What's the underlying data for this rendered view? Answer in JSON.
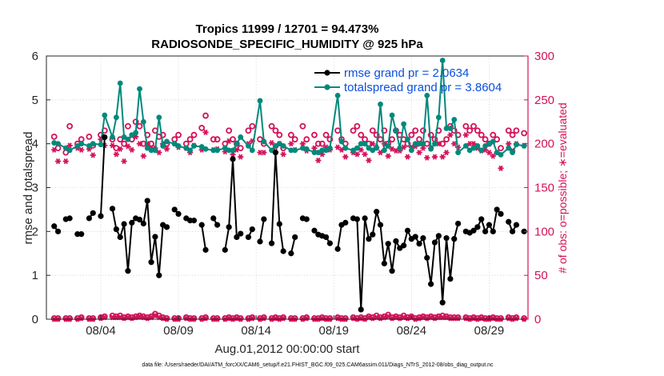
{
  "chart_data": {
    "type": "line",
    "title_line1": "Tropics 11999 / 12701 = 94.473%",
    "title_line2": "RADIOSONDE_SPECIFIC_HUMIDITY @ 925 hPa",
    "ylabel_left": "rmse and totalspread",
    "ylabel_right": "# of obs: o=possible; ∗=evaluated",
    "xlabel": "Aug.01,2012 00:00:00 start",
    "footnote": "data file: /Users/raeder/DAI/ATM_forcXX/CAM6_setup/f.e21.FHIST_BGC.f09_025.CAM6assim.011/Diags_NTrS_2012-08/obs_diag_output.nc",
    "xlim": [
      0.5,
      31.5
    ],
    "ylim_left": [
      0,
      6
    ],
    "ylim_right": [
      0,
      300
    ],
    "x_tick_values": [
      4,
      9,
      14,
      19,
      24,
      29
    ],
    "x_tick_labels": [
      "08/04",
      "08/09",
      "08/14",
      "08/19",
      "08/24",
      "08/29"
    ],
    "y_left_ticks": [
      0,
      1,
      2,
      3,
      4,
      5,
      6
    ],
    "y_right_ticks": [
      0,
      50,
      100,
      150,
      200,
      250,
      300
    ],
    "grid": true,
    "legend": {
      "rmse_label": "rmse grand pr = 2.0634",
      "spread_label": "totalspread grand pr = 3.8604"
    },
    "colors": {
      "rmse": "#000000",
      "spread": "#00897b",
      "counts": "#d41159",
      "legend_text": "#0a4fe0"
    },
    "x": [
      1.0,
      1.25,
      1.75,
      2.0,
      2.5,
      2.75,
      3.25,
      3.5,
      4.0,
      4.25,
      4.75,
      5.0,
      5.25,
      5.5,
      5.75,
      6.0,
      6.25,
      6.5,
      6.75,
      7.0,
      7.25,
      7.5,
      7.75,
      8.0,
      8.25,
      8.75,
      9.0,
      9.5,
      9.75,
      10.0,
      10.5,
      10.75,
      11.25,
      11.5,
      12.0,
      12.25,
      12.5,
      12.75,
      13.0,
      13.5,
      13.75,
      14.25,
      14.5,
      15.0,
      15.25,
      15.5,
      15.75,
      16.25,
      16.5,
      17.0,
      17.25,
      17.75,
      18.0,
      18.25,
      18.5,
      18.75,
      19.25,
      19.5,
      19.75,
      20.25,
      20.5,
      20.75,
      21.0,
      21.25,
      21.5,
      21.75,
      22.0,
      22.25,
      22.5,
      22.75,
      23.0,
      23.25,
      23.5,
      23.75,
      24.0,
      24.25,
      24.5,
      24.75,
      25.0,
      25.25,
      25.5,
      25.75,
      26.0,
      26.25,
      26.5,
      26.75,
      27.0,
      27.5,
      27.75,
      28.0,
      28.25,
      28.5,
      28.75,
      29.0,
      29.25,
      29.5,
      29.75,
      30.25,
      30.5,
      30.75,
      31.25
    ],
    "series": [
      {
        "name": "rmse",
        "values": [
          2.12,
          2.0,
          2.28,
          2.3,
          1.94,
          1.94,
          2.3,
          2.42,
          2.35,
          4.15,
          2.52,
          2.05,
          1.87,
          2.17,
          1.1,
          2.2,
          2.3,
          2.27,
          2.18,
          2.7,
          1.3,
          1.88,
          1.0,
          2.15,
          2.1,
          2.5,
          2.4,
          2.3,
          2.25,
          2.25,
          2.15,
          1.58,
          2.3,
          2.15,
          1.58,
          2.1,
          3.65,
          1.87,
          1.95,
          1.87,
          2.05,
          1.77,
          2.28,
          1.73,
          3.8,
          2.17,
          1.55,
          1.5,
          1.87,
          2.3,
          2.28,
          2.02,
          1.93,
          1.9,
          1.87,
          1.73,
          1.6,
          2.15,
          2.2,
          2.3,
          2.28,
          0.22,
          2.3,
          1.83,
          1.93,
          2.45,
          2.15,
          1.27,
          1.72,
          1.1,
          1.78,
          1.62,
          1.68,
          2.02,
          1.83,
          1.88,
          1.72,
          1.85,
          1.4,
          0.8,
          1.75,
          1.9,
          0.38,
          1.85,
          0.92,
          1.83,
          2.18,
          2.0,
          1.97,
          2.02,
          2.1,
          2.28,
          2.0,
          2.15,
          2.0,
          2.5,
          2.4,
          2.22,
          2.0,
          2.15,
          2.0
        ]
      },
      {
        "name": "totalspread",
        "values": [
          4.02,
          4.0,
          3.9,
          3.85,
          3.95,
          4.0,
          3.95,
          4.0,
          3.98,
          4.65,
          4.15,
          4.6,
          5.38,
          4.15,
          4.1,
          4.2,
          4.25,
          5.25,
          4.5,
          3.9,
          3.85,
          3.85,
          4.6,
          3.95,
          4.05,
          4.0,
          3.95,
          3.9,
          3.85,
          3.95,
          3.93,
          3.88,
          3.85,
          3.85,
          3.9,
          3.85,
          3.85,
          4.0,
          4.15,
          3.95,
          3.85,
          4.98,
          4.05,
          3.85,
          3.95,
          4.0,
          3.95,
          3.85,
          3.85,
          3.9,
          3.88,
          3.8,
          3.8,
          3.85,
          3.85,
          3.9,
          5.1,
          4.05,
          3.9,
          3.85,
          3.9,
          4.0,
          4.0,
          3.9,
          3.85,
          3.9,
          4.9,
          3.85,
          3.95,
          4.65,
          4.3,
          3.9,
          4.45,
          4.1,
          3.85,
          4.0,
          4.0,
          4.0,
          5.1,
          3.88,
          4.0,
          4.6,
          5.9,
          4.35,
          4.35,
          4.55,
          3.8,
          3.95,
          3.85,
          3.9,
          3.95,
          3.85,
          3.95,
          4.0,
          4.05,
          3.8,
          3.75,
          3.9,
          3.8,
          3.98,
          3.95
        ]
      },
      {
        "name": "possible",
        "values": [
          208,
          195,
          190,
          220,
          200,
          205,
          208,
          198,
          210,
          215,
          205,
          195,
          205,
          200,
          220,
          205,
          225,
          220,
          200,
          210,
          200,
          215,
          208,
          210,
          200,
          205,
          210,
          200,
          205,
          210,
          218,
          232,
          205,
          205,
          200,
          215,
          205,
          200,
          195,
          215,
          220,
          205,
          200,
          220,
          215,
          210,
          195,
          210,
          205,
          220,
          205,
          210,
          200,
          200,
          210,
          205,
          215,
          205,
          200,
          215,
          220,
          210,
          205,
          200,
          215,
          210,
          205,
          215,
          200,
          205,
          215,
          210,
          205,
          200,
          210,
          215,
          205,
          215,
          200,
          210,
          205,
          215,
          200,
          205,
          220,
          215,
          210,
          220,
          215,
          220,
          215,
          210,
          205,
          200,
          210,
          205,
          195,
          215,
          210,
          215,
          212
        ]
      },
      {
        "name": "evaluated",
        "values": [
          193,
          180,
          180,
          198,
          195,
          193,
          194,
          187,
          205,
          198,
          198,
          188,
          194,
          180,
          197,
          193,
          208,
          200,
          186,
          200,
          195,
          195,
          190,
          200,
          194,
          200,
          196,
          195,
          190,
          198,
          193,
          213,
          193,
          194,
          191,
          203,
          188,
          193,
          185,
          200,
          203,
          190,
          190,
          201,
          196,
          200,
          188,
          200,
          193,
          200,
          192,
          195,
          181,
          188,
          196,
          193,
          196,
          193,
          185,
          190,
          188,
          193,
          188,
          181,
          200,
          196,
          190,
          200,
          186,
          194,
          192,
          192,
          196,
          185,
          196,
          197,
          190,
          195,
          184,
          195,
          185,
          200,
          185,
          190,
          210,
          200,
          196,
          210,
          200,
          200,
          195,
          192,
          193,
          190,
          186,
          190,
          172,
          200,
          192,
          200,
          198
        ]
      },
      {
        "name": "possible_low",
        "values": [
          1,
          1,
          1,
          1,
          1,
          2,
          1,
          1,
          2,
          3,
          4,
          3,
          4,
          2,
          3,
          2,
          3,
          4,
          3,
          2,
          3,
          6,
          4,
          2,
          1,
          1,
          1,
          2,
          1,
          1,
          1,
          2,
          1,
          1,
          1,
          2,
          1,
          2,
          1,
          1,
          2,
          1,
          2,
          1,
          2,
          1,
          2,
          1,
          1,
          1,
          2,
          1,
          1,
          2,
          1,
          1,
          2,
          1,
          1,
          2,
          1,
          2,
          1,
          3,
          2,
          4,
          2,
          3,
          5,
          2,
          3,
          2,
          4,
          2,
          3,
          1,
          2,
          3,
          2,
          3,
          2,
          3,
          4,
          3,
          2,
          2,
          2,
          2,
          1,
          2,
          1,
          2,
          1,
          1,
          2,
          1,
          1,
          2,
          1,
          2,
          1
        ]
      },
      {
        "name": "evaluated_low",
        "values": [
          0,
          0,
          0,
          0,
          0,
          1,
          0,
          0,
          1,
          2,
          2,
          2,
          2,
          1,
          2,
          1,
          2,
          3,
          2,
          1,
          2,
          4,
          2,
          1,
          0,
          0,
          0,
          1,
          0,
          0,
          0,
          1,
          0,
          0,
          0,
          1,
          0,
          1,
          0,
          0,
          1,
          0,
          1,
          0,
          1,
          0,
          1,
          0,
          0,
          0,
          1,
          0,
          0,
          1,
          0,
          0,
          1,
          0,
          0,
          1,
          0,
          1,
          0,
          2,
          1,
          2,
          1,
          2,
          3,
          1,
          2,
          1,
          2,
          1,
          2,
          0,
          1,
          2,
          1,
          2,
          1,
          2,
          2,
          2,
          1,
          1,
          1,
          1,
          0,
          1,
          0,
          1,
          0,
          0,
          1,
          0,
          0,
          1,
          0,
          1,
          0
        ]
      }
    ]
  }
}
